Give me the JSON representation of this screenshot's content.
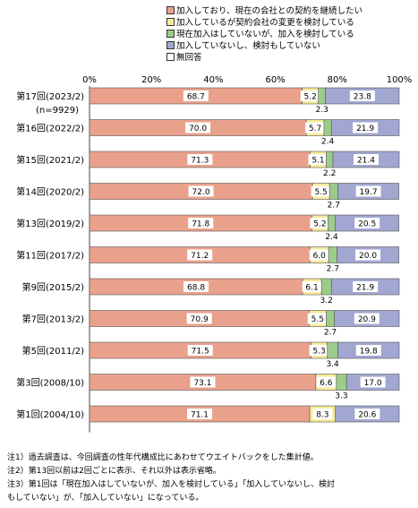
{
  "legend": [
    {
      "label": "加入しており、現在の会社との契約を継続したい",
      "color": "#e9a18c"
    },
    {
      "label": "加入しているが契約会社の変更を検討している",
      "color": "#f7eb9a"
    },
    {
      "label": "現在加入はしていないが、加入を検討している",
      "color": "#9ccc8a"
    },
    {
      "label": "加入していないし、検討もしていない",
      "color": "#a1a7d0"
    },
    {
      "label": "無回答",
      "color": "#ffffff"
    }
  ],
  "notes": [
    "注1）過去調査は、今回調査の性年代構成比にあわせてウエイトバックをした集計値。",
    "注2）第13回以前は2回ごとに表示、それ以外は表示省略。",
    "注3）第1回は「現在加入はしていないが、加入を検討している」「加入していないし、検討",
    "もしていない」が、「加入していない」になっている。"
  ],
  "chart_data": {
    "type": "bar",
    "orientation": "horizontal",
    "stacked": "percent",
    "xlim": [
      0,
      100
    ],
    "xticks": [
      "0%",
      "20%",
      "40%",
      "60%",
      "80%",
      "100%"
    ],
    "categories": [
      {
        "label": "第17回(2023/2)",
        "sub": "(n=9929)"
      },
      {
        "label": "第16回(2022/2)"
      },
      {
        "label": "第15回(2021/2)"
      },
      {
        "label": "第14回(2020/2)"
      },
      {
        "label": "第13回(2019/2)"
      },
      {
        "label": "第11回(2017/2)"
      },
      {
        "label": "第9回(2015/2)"
      },
      {
        "label": "第7回(2013/2)"
      },
      {
        "label": "第5回(2011/2)"
      },
      {
        "label": "第3回(2008/10)"
      },
      {
        "label": "第1回(2004/10)"
      }
    ],
    "series": [
      {
        "values": [
          68.7,
          70.0,
          71.3,
          72.0,
          71.8,
          71.2,
          68.8,
          70.9,
          71.5,
          73.1,
          71.1
        ],
        "labels": [
          "68.7",
          "70.0",
          "71.3",
          "72.0",
          "71.8",
          "71.2",
          "68.8",
          "70.9",
          "71.5",
          "73.1",
          "71.1"
        ]
      },
      {
        "values": [
          5.2,
          5.7,
          5.1,
          5.5,
          5.2,
          6.0,
          6.1,
          5.5,
          5.3,
          6.6,
          8.3
        ],
        "labels": [
          "5.2",
          "5.7",
          "5.1",
          "5.5",
          "5.2",
          "6.0",
          "6.1",
          "5.5",
          "5.3",
          "6.6",
          "8.3"
        ]
      },
      {
        "values": [
          2.3,
          2.4,
          2.2,
          2.7,
          2.4,
          2.7,
          3.2,
          2.7,
          3.4,
          3.3,
          0
        ],
        "labels": [
          "2.3",
          "2.4",
          "2.2",
          "2.7",
          "2.4",
          "2.7",
          "3.2",
          "2.7",
          "3.4",
          "3.3",
          ""
        ]
      },
      {
        "values": [
          23.8,
          21.9,
          21.4,
          19.7,
          20.5,
          20.0,
          21.9,
          20.9,
          19.8,
          17.0,
          20.6
        ],
        "labels": [
          "23.8",
          "21.9",
          "21.4",
          "19.7",
          "20.5",
          "20.0",
          "21.9",
          "20.9",
          "19.8",
          "17.0",
          "20.6"
        ]
      },
      {
        "values": [
          0,
          0,
          0,
          0,
          0,
          0,
          0,
          0,
          0,
          0,
          0
        ]
      }
    ],
    "grid": false
  }
}
